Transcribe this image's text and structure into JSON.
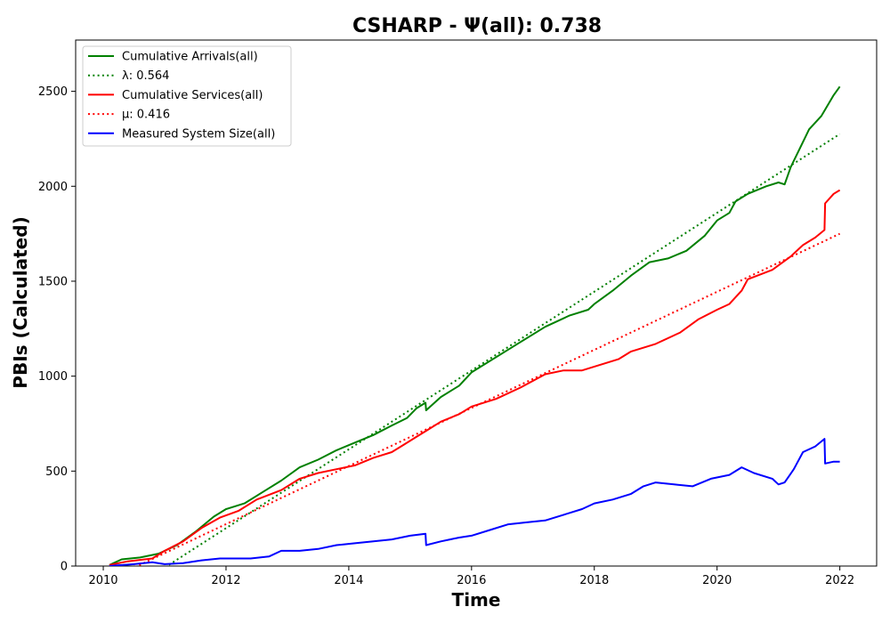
{
  "chart_data": {
    "type": "line",
    "title": "CSHARP -  Ψ(all): 0.738",
    "xlabel": "Time",
    "ylabel": "PBIs (Calculated)",
    "xlim": [
      2009.55,
      2022.6
    ],
    "ylim": [
      0,
      2770
    ],
    "xticks": [
      2010,
      2012,
      2014,
      2016,
      2018,
      2020,
      2022
    ],
    "xtick_labels": [
      "2010",
      "2012",
      "2014",
      "2016",
      "2018",
      "2020",
      "2022"
    ],
    "yticks": [
      0,
      500,
      1000,
      1500,
      2000,
      2500
    ],
    "ytick_labels": [
      "0",
      "500",
      "1000",
      "1500",
      "2000",
      "2500"
    ],
    "grid": false,
    "legend_position": "top-left",
    "series": [
      {
        "name": "Cumulative Arrivals(all)",
        "color": "#008000",
        "style": "solid",
        "points": [
          [
            2010.1,
            5
          ],
          [
            2010.3,
            35
          ],
          [
            2010.6,
            45
          ],
          [
            2010.9,
            65
          ],
          [
            2011.2,
            110
          ],
          [
            2011.5,
            180
          ],
          [
            2011.8,
            260
          ],
          [
            2012.0,
            300
          ],
          [
            2012.3,
            330
          ],
          [
            2012.6,
            390
          ],
          [
            2012.9,
            450
          ],
          [
            2013.2,
            520
          ],
          [
            2013.5,
            560
          ],
          [
            2013.8,
            610
          ],
          [
            2014.1,
            650
          ],
          [
            2014.4,
            690
          ],
          [
            2014.7,
            740
          ],
          [
            2014.95,
            780
          ],
          [
            2015.1,
            830
          ],
          [
            2015.25,
            860
          ],
          [
            2015.26,
            820
          ],
          [
            2015.5,
            890
          ],
          [
            2015.8,
            950
          ],
          [
            2016.0,
            1020
          ],
          [
            2016.4,
            1100
          ],
          [
            2016.8,
            1180
          ],
          [
            2017.2,
            1260
          ],
          [
            2017.6,
            1320
          ],
          [
            2017.9,
            1350
          ],
          [
            2018.0,
            1380
          ],
          [
            2018.3,
            1450
          ],
          [
            2018.6,
            1530
          ],
          [
            2018.9,
            1600
          ],
          [
            2019.2,
            1620
          ],
          [
            2019.5,
            1660
          ],
          [
            2019.8,
            1740
          ],
          [
            2020.0,
            1820
          ],
          [
            2020.2,
            1860
          ],
          [
            2020.3,
            1920
          ],
          [
            2020.5,
            1960
          ],
          [
            2020.8,
            2000
          ],
          [
            2021.0,
            2020
          ],
          [
            2021.1,
            2010
          ],
          [
            2021.2,
            2100
          ],
          [
            2021.35,
            2200
          ],
          [
            2021.5,
            2300
          ],
          [
            2021.7,
            2370
          ],
          [
            2021.9,
            2480
          ],
          [
            2022.0,
            2525
          ]
        ]
      },
      {
        "name": "λ: 0.564",
        "color": "#008000",
        "style": "dotted",
        "points": [
          [
            2010.1,
            -195
          ],
          [
            2022.0,
            2275
          ]
        ]
      },
      {
        "name": "Cumulative Services(all)",
        "color": "#ff0000",
        "style": "solid",
        "points": [
          [
            2010.1,
            5
          ],
          [
            2010.4,
            25
          ],
          [
            2010.8,
            40
          ],
          [
            2011.0,
            80
          ],
          [
            2011.3,
            130
          ],
          [
            2011.6,
            200
          ],
          [
            2011.9,
            255
          ],
          [
            2012.2,
            290
          ],
          [
            2012.5,
            350
          ],
          [
            2012.9,
            400
          ],
          [
            2013.2,
            460
          ],
          [
            2013.5,
            490
          ],
          [
            2013.8,
            510
          ],
          [
            2014.1,
            530
          ],
          [
            2014.4,
            570
          ],
          [
            2014.7,
            600
          ],
          [
            2014.9,
            640
          ],
          [
            2015.1,
            680
          ],
          [
            2015.3,
            720
          ],
          [
            2015.5,
            760
          ],
          [
            2015.8,
            800
          ],
          [
            2016.0,
            840
          ],
          [
            2016.4,
            880
          ],
          [
            2016.8,
            940
          ],
          [
            2017.2,
            1010
          ],
          [
            2017.5,
            1030
          ],
          [
            2017.8,
            1030
          ],
          [
            2018.1,
            1060
          ],
          [
            2018.4,
            1090
          ],
          [
            2018.6,
            1130
          ],
          [
            2019.0,
            1170
          ],
          [
            2019.4,
            1230
          ],
          [
            2019.7,
            1300
          ],
          [
            2020.0,
            1350
          ],
          [
            2020.2,
            1380
          ],
          [
            2020.4,
            1450
          ],
          [
            2020.5,
            1510
          ],
          [
            2020.9,
            1560
          ],
          [
            2021.2,
            1630
          ],
          [
            2021.4,
            1690
          ],
          [
            2021.6,
            1730
          ],
          [
            2021.75,
            1770
          ],
          [
            2021.76,
            1910
          ],
          [
            2021.9,
            1960
          ],
          [
            2022.0,
            1980
          ]
        ]
      },
      {
        "name": "μ: 0.416",
        "color": "#ff0000",
        "style": "dotted",
        "points": [
          [
            2010.1,
            -70
          ],
          [
            2022.0,
            1750
          ]
        ]
      },
      {
        "name": "Measured System Size(all)",
        "color": "#0000ff",
        "style": "solid",
        "points": [
          [
            2010.1,
            0
          ],
          [
            2010.5,
            10
          ],
          [
            2010.8,
            20
          ],
          [
            2011.0,
            10
          ],
          [
            2011.3,
            15
          ],
          [
            2011.6,
            30
          ],
          [
            2011.9,
            40
          ],
          [
            2012.4,
            40
          ],
          [
            2012.7,
            50
          ],
          [
            2012.9,
            80
          ],
          [
            2013.2,
            80
          ],
          [
            2013.5,
            90
          ],
          [
            2013.8,
            110
          ],
          [
            2014.1,
            120
          ],
          [
            2014.4,
            130
          ],
          [
            2014.7,
            140
          ],
          [
            2015.0,
            160
          ],
          [
            2015.25,
            170
          ],
          [
            2015.26,
            110
          ],
          [
            2015.5,
            130
          ],
          [
            2015.8,
            150
          ],
          [
            2016.0,
            160
          ],
          [
            2016.3,
            190
          ],
          [
            2016.6,
            220
          ],
          [
            2016.9,
            230
          ],
          [
            2017.2,
            240
          ],
          [
            2017.5,
            270
          ],
          [
            2017.8,
            300
          ],
          [
            2018.0,
            330
          ],
          [
            2018.3,
            350
          ],
          [
            2018.6,
            380
          ],
          [
            2018.8,
            420
          ],
          [
            2019.0,
            440
          ],
          [
            2019.3,
            430
          ],
          [
            2019.6,
            420
          ],
          [
            2019.9,
            460
          ],
          [
            2020.2,
            480
          ],
          [
            2020.4,
            520
          ],
          [
            2020.6,
            490
          ],
          [
            2020.9,
            460
          ],
          [
            2021.0,
            430
          ],
          [
            2021.1,
            440
          ],
          [
            2021.25,
            510
          ],
          [
            2021.4,
            600
          ],
          [
            2021.6,
            630
          ],
          [
            2021.75,
            670
          ],
          [
            2021.76,
            540
          ],
          [
            2021.9,
            550
          ],
          [
            2022.0,
            550
          ]
        ]
      }
    ]
  }
}
